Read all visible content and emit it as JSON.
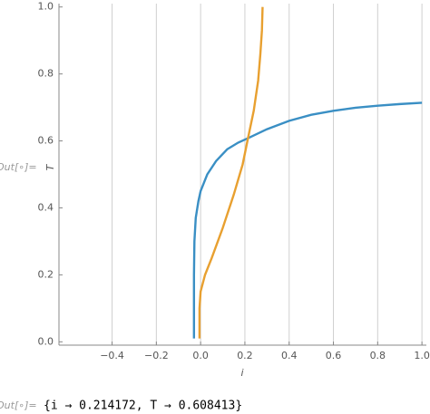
{
  "chart_data": {
    "type": "line",
    "x_label": "i",
    "y_label": "T",
    "xlim": [
      -0.64,
      1.02
    ],
    "ylim": [
      -0.01,
      1.01
    ],
    "xticks": [
      {
        "value": -0.4,
        "label": "−0.4"
      },
      {
        "value": -0.2,
        "label": "−0.2"
      },
      {
        "value": 0,
        "label": "0.0"
      },
      0.2,
      0.4,
      0.6,
      0.8,
      {
        "value": 1,
        "label": "1.0"
      }
    ],
    "yticks": [
      {
        "value": 0,
        "label": "0.0"
      },
      0.2,
      0.4,
      0.6,
      0.8,
      {
        "value": 1,
        "label": "1.0"
      }
    ],
    "xgrid": true,
    "ygrid": false,
    "series": [
      {
        "color": "#3a8fc4",
        "x": [
          -0.03,
          -0.03,
          -0.028,
          -0.022,
          -0.01,
          0.0,
          0.03,
          0.07,
          0.12,
          0.17,
          0.214,
          0.3,
          0.4,
          0.5,
          0.6,
          0.7,
          0.8,
          0.9,
          1.0
        ],
        "values": [
          0.01,
          0.2,
          0.3,
          0.37,
          0.42,
          0.45,
          0.5,
          0.54,
          0.575,
          0.595,
          0.608,
          0.635,
          0.66,
          0.678,
          0.69,
          0.699,
          0.705,
          0.71,
          0.714
        ]
      },
      {
        "color": "#e8a030",
        "x": [
          -0.005,
          -0.005,
          0.0,
          0.02,
          0.05,
          0.1,
          0.15,
          0.19,
          0.214,
          0.24,
          0.26,
          0.27,
          0.277,
          0.28
        ],
        "values": [
          0.01,
          0.1,
          0.15,
          0.2,
          0.25,
          0.34,
          0.44,
          0.53,
          0.608,
          0.69,
          0.78,
          0.86,
          0.93,
          1.0
        ]
      }
    ]
  },
  "cells": [
    {
      "label": "Out[∘]="
    },
    {
      "label": "Out[∘]=",
      "text": "{i → 0.214172, T → 0.608413}"
    }
  ]
}
